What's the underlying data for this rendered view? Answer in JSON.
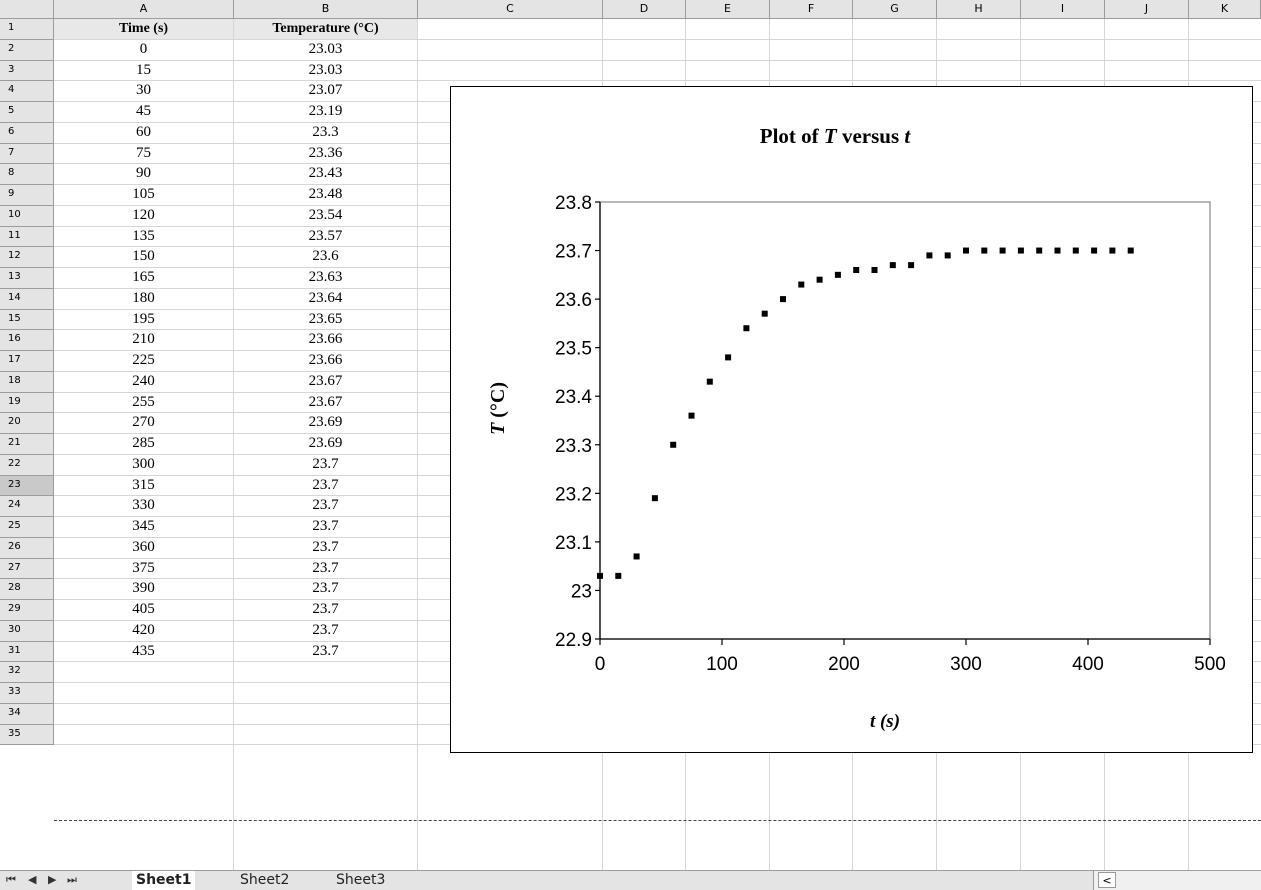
{
  "columns": [
    "A",
    "B",
    "C",
    "D",
    "E",
    "F",
    "G",
    "H",
    "I",
    "J",
    "K"
  ],
  "rows": [
    "1",
    "2",
    "3",
    "4",
    "5",
    "6",
    "7",
    "8",
    "9",
    "10",
    "11",
    "12",
    "13",
    "14",
    "15",
    "16",
    "17",
    "18",
    "19",
    "20",
    "21",
    "22",
    "23",
    "24",
    "25",
    "26",
    "27",
    "28",
    "29",
    "30",
    "31",
    "32",
    "33",
    "34",
    "35"
  ],
  "selected_row": "23",
  "table": {
    "headers": [
      "Time (s)",
      "Temperature (°C)"
    ],
    "time": [
      "0",
      "15",
      "30",
      "45",
      "60",
      "75",
      "90",
      "105",
      "120",
      "135",
      "150",
      "165",
      "180",
      "195",
      "210",
      "225",
      "240",
      "255",
      "270",
      "285",
      "300",
      "315",
      "330",
      "345",
      "360",
      "375",
      "390",
      "405",
      "420",
      "435"
    ],
    "temperature": [
      "23.03",
      "23.03",
      "23.07",
      "23.19",
      "23.3",
      "23.36",
      "23.43",
      "23.48",
      "23.54",
      "23.57",
      "23.6",
      "23.63",
      "23.64",
      "23.65",
      "23.66",
      "23.66",
      "23.67",
      "23.67",
      "23.69",
      "23.69",
      "23.7",
      "23.7",
      "23.7",
      "23.7",
      "23.7",
      "23.7",
      "23.7",
      "23.7",
      "23.7",
      "23.7"
    ]
  },
  "chart_data": {
    "type": "scatter",
    "title_parts": [
      "Plot of ",
      "T",
      " versus ",
      "t"
    ],
    "xlabel_parts": [
      "t",
      " (s)"
    ],
    "ylabel_parts": [
      "T",
      " (°C)"
    ],
    "x": [
      0,
      15,
      30,
      45,
      60,
      75,
      90,
      105,
      120,
      135,
      150,
      165,
      180,
      195,
      210,
      225,
      240,
      255,
      270,
      285,
      300,
      315,
      330,
      345,
      360,
      375,
      390,
      405,
      420,
      435
    ],
    "y": [
      23.03,
      23.03,
      23.07,
      23.19,
      23.3,
      23.36,
      23.43,
      23.48,
      23.54,
      23.57,
      23.6,
      23.63,
      23.64,
      23.65,
      23.66,
      23.66,
      23.67,
      23.67,
      23.69,
      23.69,
      23.7,
      23.7,
      23.7,
      23.7,
      23.7,
      23.7,
      23.7,
      23.7,
      23.7,
      23.7
    ],
    "xlim": [
      0,
      500
    ],
    "ylim": [
      22.9,
      23.8
    ],
    "xticks": [
      "0",
      "100",
      "200",
      "300",
      "400",
      "500"
    ],
    "yticks": [
      "22.9",
      "23",
      "23.1",
      "23.2",
      "23.3",
      "23.4",
      "23.5",
      "23.6",
      "23.7",
      "23.8"
    ],
    "grid": false,
    "legend": "none",
    "marker_color": "#000000"
  },
  "tabs": {
    "nav": [
      "⏮",
      "◀",
      "▶",
      "⏭"
    ],
    "sheets": [
      "Sheet1",
      "Sheet2",
      "Sheet3"
    ],
    "scroll_left": "<"
  }
}
